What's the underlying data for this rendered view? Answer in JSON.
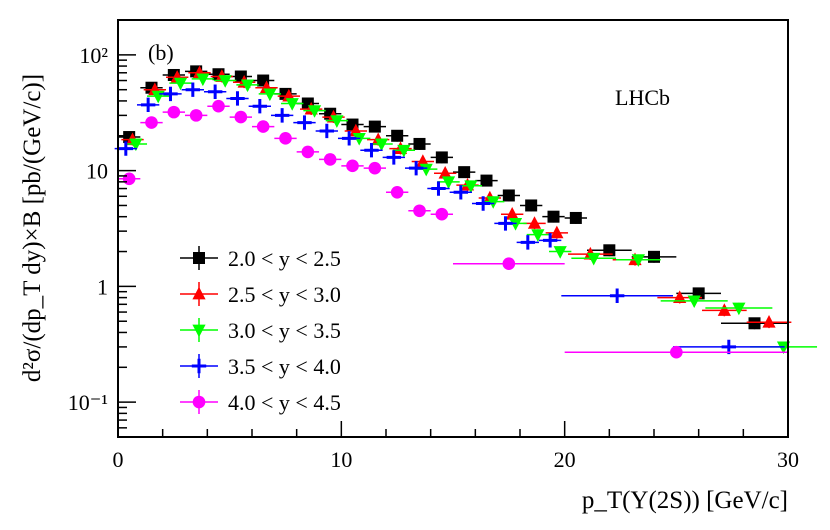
{
  "chart_data": {
    "type": "scatter",
    "panel_label": "(b)",
    "experiment_label": "LHCb",
    "xlabel": "p_T(Υ(2S)) [GeV/c]",
    "ylabel": "d²σ/(dp_T dy)×B [pb/(GeV/c)]",
    "xlim": [
      0,
      30
    ],
    "ylim": [
      0.05,
      200
    ],
    "yscale": "log",
    "legend_position": "lower-left",
    "x_tick_labels": [
      "0",
      "10",
      "20",
      "30"
    ],
    "y_tick_labels": [
      "10⁻¹",
      "1",
      "10",
      "10²"
    ],
    "series": [
      {
        "name": "2.0 < y < 2.5",
        "color": "#000000",
        "marker": "square",
        "offset": 0.0,
        "points": [
          [
            0.5,
            19.5,
            0.5
          ],
          [
            1.5,
            52,
            0.5
          ],
          [
            2.5,
            67,
            0.5
          ],
          [
            3.5,
            72,
            0.5
          ],
          [
            4.5,
            68,
            0.5
          ],
          [
            5.5,
            65,
            0.5
          ],
          [
            6.5,
            60,
            0.5
          ],
          [
            7.5,
            46,
            0.5
          ],
          [
            8.5,
            38,
            0.5
          ],
          [
            9.5,
            31,
            0.5
          ],
          [
            10.5,
            25,
            0.5
          ],
          [
            11.5,
            24,
            0.5
          ],
          [
            12.5,
            20,
            0.5
          ],
          [
            13.5,
            17,
            0.5
          ],
          [
            14.5,
            13,
            0.5
          ],
          [
            15.5,
            9.7,
            0.5
          ],
          [
            16.5,
            8.2,
            0.5
          ],
          [
            17.5,
            6.1,
            0.5
          ],
          [
            18.5,
            5.0,
            0.5
          ],
          [
            19.5,
            4.0,
            0.5
          ],
          [
            20.5,
            3.9,
            0.5
          ],
          [
            22,
            2.05,
            1.0
          ],
          [
            24,
            1.8,
            1.0
          ],
          [
            26,
            0.87,
            1.0
          ],
          [
            28.5,
            0.48,
            1.5
          ]
        ]
      },
      {
        "name": "2.5 < y < 3.0",
        "color": "#ff0000",
        "marker": "triangle-up",
        "offset": 0.15,
        "points": [
          [
            0.5,
            18.5,
            0.5
          ],
          [
            1.5,
            50,
            0.5
          ],
          [
            2.5,
            64,
            0.5
          ],
          [
            3.5,
            70,
            0.5
          ],
          [
            4.5,
            65,
            0.5
          ],
          [
            5.5,
            58,
            0.5
          ],
          [
            6.5,
            52,
            0.5
          ],
          [
            7.5,
            44,
            0.5
          ],
          [
            8.5,
            34,
            0.5
          ],
          [
            9.5,
            29,
            0.5
          ],
          [
            10.5,
            22,
            0.5
          ],
          [
            11.5,
            18.5,
            0.5
          ],
          [
            12.5,
            15.5,
            0.5
          ],
          [
            13.5,
            12,
            0.5
          ],
          [
            14.5,
            9.5,
            0.5
          ],
          [
            15.5,
            7.5,
            0.5
          ],
          [
            16.5,
            5.8,
            0.5
          ],
          [
            17.5,
            4.2,
            0.5
          ],
          [
            18.5,
            3.5,
            0.5
          ],
          [
            19.5,
            2.9,
            0.5
          ],
          [
            21,
            1.9,
            1.0
          ],
          [
            23,
            1.7,
            1.0
          ],
          [
            25,
            0.8,
            1.0
          ],
          [
            27,
            0.62,
            1.0
          ],
          [
            29,
            0.49,
            1.0
          ]
        ]
      },
      {
        "name": "3.0 < y < 3.5",
        "color": "#00ff00",
        "marker": "triangle-down",
        "offset": 0.3,
        "points": [
          [
            0.5,
            17,
            0.5
          ],
          [
            1.5,
            44,
            0.5
          ],
          [
            2.5,
            57,
            0.5
          ],
          [
            3.5,
            62,
            0.5
          ],
          [
            4.5,
            60,
            0.5
          ],
          [
            5.5,
            55,
            0.5
          ],
          [
            6.5,
            46,
            0.5
          ],
          [
            7.5,
            38,
            0.5
          ],
          [
            8.5,
            33,
            0.5
          ],
          [
            9.5,
            27,
            0.5
          ],
          [
            10.5,
            19,
            0.5
          ],
          [
            11.5,
            17,
            0.5
          ],
          [
            12.5,
            15,
            0.5
          ],
          [
            13.5,
            10.3,
            0.5
          ],
          [
            14.5,
            8.0,
            0.5
          ],
          [
            15.5,
            7.4,
            0.5
          ],
          [
            16.5,
            5.4,
            0.5
          ],
          [
            17.5,
            3.5,
            0.5
          ],
          [
            18.5,
            2.8,
            0.5
          ],
          [
            19.5,
            2.0,
            0.5
          ],
          [
            21,
            1.75,
            1.0
          ],
          [
            23,
            1.7,
            1.0
          ],
          [
            25.5,
            0.75,
            1.5
          ],
          [
            27.5,
            0.65,
            1.5
          ],
          [
            29.5,
            0.3,
            1.5
          ]
        ]
      },
      {
        "name": "3.5 < y < 4.0",
        "color": "#0000ff",
        "marker": "cross",
        "offset": -0.15,
        "points": [
          [
            0.5,
            15.5,
            0.5
          ],
          [
            1.5,
            37,
            0.5
          ],
          [
            2.5,
            46,
            0.5
          ],
          [
            3.5,
            50,
            0.5
          ],
          [
            4.5,
            48,
            0.5
          ],
          [
            5.5,
            42,
            0.5
          ],
          [
            6.5,
            36,
            0.5
          ],
          [
            7.5,
            30,
            0.5
          ],
          [
            8.5,
            26,
            0.5
          ],
          [
            9.5,
            22,
            0.5
          ],
          [
            10.5,
            19,
            0.5
          ],
          [
            11.5,
            15,
            0.5
          ],
          [
            12.5,
            13,
            0.5
          ],
          [
            13.5,
            10.5,
            0.5
          ],
          [
            14.5,
            7.0,
            0.5
          ],
          [
            15.5,
            6.5,
            0.5
          ],
          [
            16.5,
            5.2,
            0.5
          ],
          [
            17.5,
            3.5,
            0.5
          ],
          [
            18.5,
            2.4,
            0.5
          ],
          [
            19.5,
            2.5,
            0.5
          ],
          [
            22.5,
            0.83,
            2.5
          ],
          [
            27.5,
            0.3,
            2.5
          ]
        ]
      },
      {
        "name": "4.0 < y < 4.5",
        "color": "#ff00ff",
        "marker": "circle",
        "offset": 0.0,
        "points": [
          [
            0.5,
            8.5,
            0.5
          ],
          [
            1.5,
            26,
            0.5
          ],
          [
            2.5,
            32,
            0.5
          ],
          [
            3.5,
            30,
            0.5
          ],
          [
            4.5,
            36,
            0.5
          ],
          [
            5.5,
            29,
            0.5
          ],
          [
            6.5,
            24,
            0.5
          ],
          [
            7.5,
            19,
            0.5
          ],
          [
            8.5,
            14.5,
            0.5
          ],
          [
            9.5,
            12.5,
            0.5
          ],
          [
            10.5,
            11,
            0.5
          ],
          [
            11.5,
            10.5,
            0.5
          ],
          [
            12.5,
            6.5,
            0.5
          ],
          [
            13.5,
            4.5,
            0.5
          ],
          [
            14.5,
            4.2,
            0.5
          ],
          [
            17.5,
            1.57,
            2.5
          ],
          [
            25,
            0.27,
            5.0
          ]
        ]
      }
    ]
  }
}
